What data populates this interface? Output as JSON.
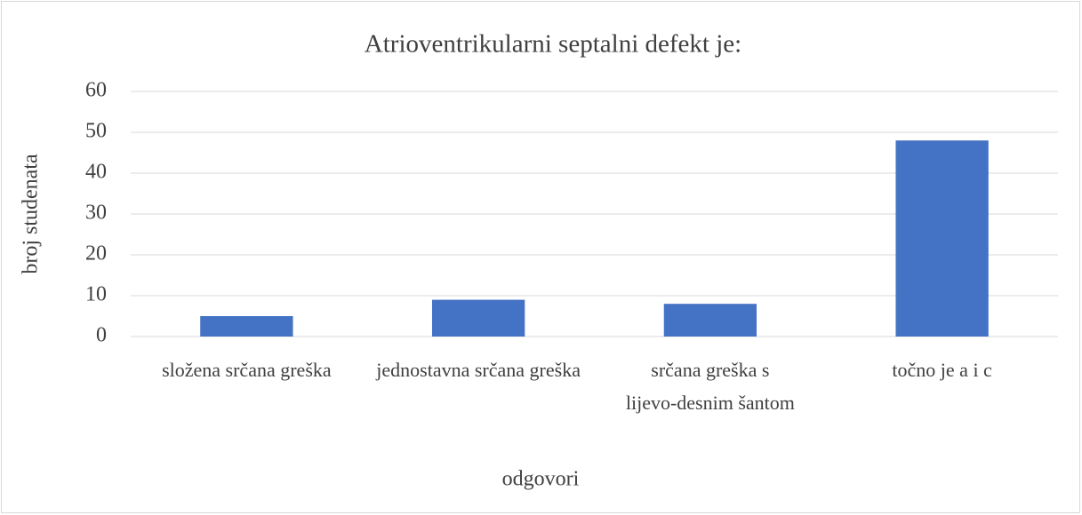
{
  "chart_data": {
    "type": "bar",
    "title": "Atrioventrikularni septalni defekt je:",
    "categories": [
      "složena srčana greška",
      "jednostavna srčana greška",
      "srčana greška s lijevo-desnim šantom",
      "točno je a i c"
    ],
    "values": [
      5,
      9,
      8,
      48
    ],
    "color": "#4472c4",
    "xlabel": "odgovori",
    "ylabel": "broj studenata",
    "ylim": [
      0,
      60
    ],
    "yticks": [
      0,
      10,
      20,
      30,
      40,
      50,
      60
    ],
    "grid": true
  }
}
